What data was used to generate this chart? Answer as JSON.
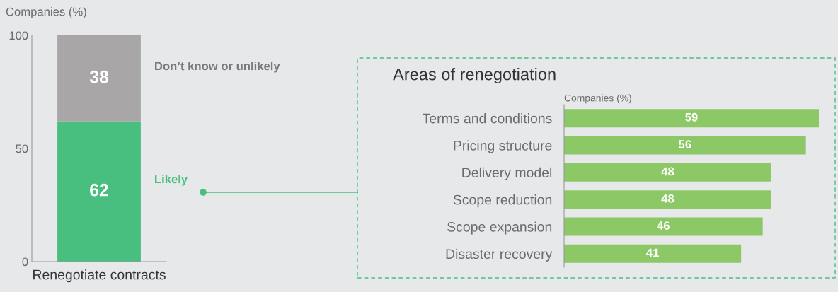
{
  "chart_data": [
    {
      "type": "bar",
      "stacked": true,
      "ylabel": "Companies (%)",
      "categories": [
        "Renegotiate contracts"
      ],
      "ylim": [
        0,
        100
      ],
      "yticks": [
        0,
        50,
        100
      ],
      "data_labels": true,
      "series": [
        {
          "name": "Likely",
          "color": "#48bf7f",
          "values": [
            62
          ]
        },
        {
          "name": "Don’t know or unlikely",
          "color": "#a8a6a7",
          "values": [
            38
          ]
        }
      ]
    },
    {
      "type": "bar",
      "orientation": "horizontal",
      "title": "Areas of renegotiation",
      "xlabel": "Companies (%)",
      "data_labels": true,
      "color": "#8cc866",
      "categories": [
        "Terms and conditions",
        "Pricing structure",
        "Delivery model",
        "Scope reduction",
        "Scope expansion",
        "Disaster recovery"
      ],
      "values": [
        59,
        56,
        48,
        48,
        46,
        41
      ]
    }
  ]
}
